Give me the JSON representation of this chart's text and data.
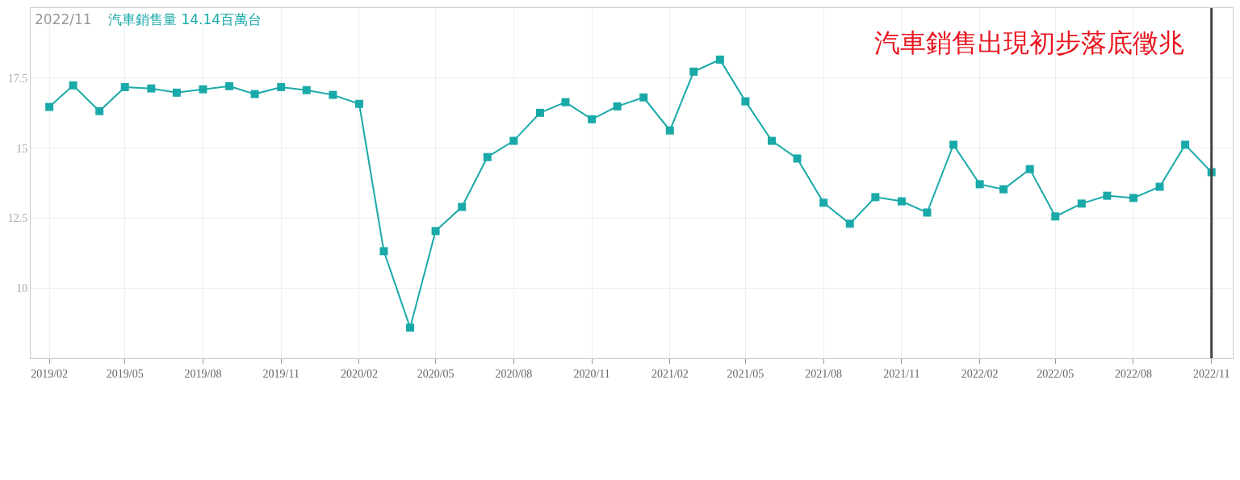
{
  "chart_data": {
    "type": "line",
    "title": "汽車銷售出現初步落底徵兆",
    "annotations": [
      "2022/11",
      "汽車銷售量 14.14百萬台"
    ],
    "x": [
      "2019-02",
      "2019-03",
      "2019-04",
      "2019-05",
      "2019-06",
      "2019-07",
      "2019-08",
      "2019-09",
      "2019-10",
      "2019-11",
      "2019-12",
      "2020-01",
      "2020-02",
      "2020-03",
      "2020-04",
      "2020-05",
      "2020-06",
      "2020-07",
      "2020-08",
      "2020-09",
      "2020-10",
      "2020-11",
      "2020-12",
      "2021-01",
      "2021-02",
      "2021-03",
      "2021-04",
      "2021-05",
      "2021-06",
      "2021-07",
      "2021-08",
      "2021-09",
      "2021-10",
      "2021-11",
      "2021-12",
      "2022-01",
      "2022-02",
      "2022-03",
      "2022-04",
      "2022-05",
      "2022-06",
      "2022-07",
      "2022-08",
      "2022-09",
      "2022-10",
      "2022-11"
    ],
    "series": [
      {
        "color": "#1aa9a9",
        "values": [
          16.47,
          17.24,
          16.32,
          17.18,
          17.13,
          16.98,
          17.1,
          17.21,
          16.93,
          17.18,
          17.07,
          16.9,
          16.58,
          11.32,
          8.59,
          12.04,
          12.9,
          14.68,
          15.26,
          16.26,
          16.64,
          16.03,
          16.49,
          16.81,
          15.63,
          17.73,
          18.16,
          16.67,
          15.26,
          14.63,
          13.05,
          12.3,
          13.25,
          13.1,
          12.7,
          15.12,
          13.71,
          13.53,
          14.25,
          12.56,
          13.02,
          13.3,
          13.22,
          13.62,
          15.12,
          14.14
        ]
      }
    ],
    "xlim": [
      "2019-01-10",
      "2022-11-26"
    ],
    "xticks": [
      {
        "value": "2019-02",
        "label": "2019/02"
      },
      {
        "value": "2019-05",
        "label": "2019/05"
      },
      {
        "value": "2019-08",
        "label": "2019/08"
      },
      {
        "value": "2019-11",
        "label": "2019/11"
      },
      {
        "value": "2020-02",
        "label": "2020/02"
      },
      {
        "value": "2020-05",
        "label": "2020/05"
      },
      {
        "value": "2020-08",
        "label": "2020/08"
      },
      {
        "value": "2020-11",
        "label": "2020/11"
      },
      {
        "value": "2021-02",
        "label": "2021/02"
      },
      {
        "value": "2021-05",
        "label": "2021/05"
      },
      {
        "value": "2021-08",
        "label": "2021/08"
      },
      {
        "value": "2021-11",
        "label": "2021/11"
      },
      {
        "value": "2022-02",
        "label": "2022/02"
      },
      {
        "value": "2022-05",
        "label": "2022/05"
      },
      {
        "value": "2022-08",
        "label": "2022/08"
      },
      {
        "value": "2022-11",
        "label": "2022/11"
      }
    ],
    "ylim": [
      7.5,
      20
    ],
    "yticks": [
      10,
      12.5,
      15,
      17.5
    ],
    "ref_lines": [
      {
        "axis": "x",
        "value": "2022-11",
        "color": "#444444"
      }
    ],
    "grid": true,
    "marker": "square",
    "line_style": "solid"
  }
}
